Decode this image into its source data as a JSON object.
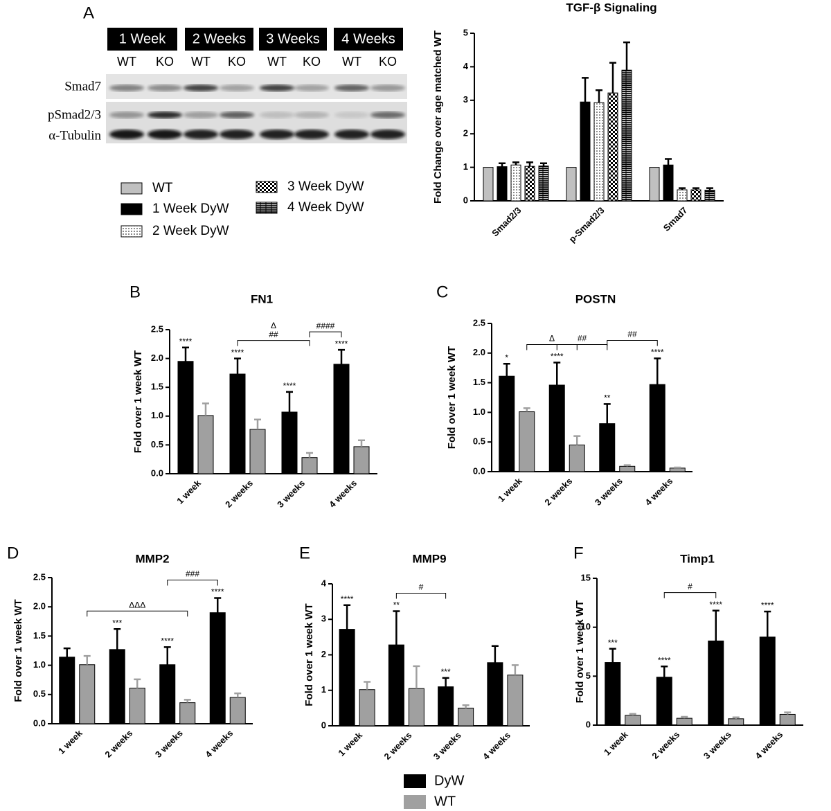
{
  "blot": {
    "timepoints": [
      "1 Week",
      "2 Weeks",
      "3 Weeks",
      "4 Weeks"
    ],
    "lanes": [
      "WT",
      "KO"
    ],
    "rows": [
      "Smad7",
      "pSmad2/3",
      "α-Tubulin"
    ]
  },
  "chart_data": [
    {
      "type": "bar",
      "panel": "A",
      "title": "TGF-β Signaling",
      "y_label": "Fold Change over age matched WT",
      "categories": [
        "Smad2/3",
        "p-Smad2/3",
        "Smad7"
      ],
      "ylim": [
        0,
        5
      ],
      "yticks": [
        0,
        1,
        2,
        3,
        4,
        5
      ],
      "series": [
        {
          "name": "WT",
          "color": "#c0c0c0",
          "pattern": "solid",
          "values": [
            1,
            1,
            1
          ]
        },
        {
          "name": "1 Week DyW",
          "color": "#000000",
          "pattern": "solid",
          "values": [
            1.02,
            2.95,
            1.07
          ],
          "errors": [
            0.1,
            0.72,
            0.18
          ]
        },
        {
          "name": "2 Week DyW",
          "color": "#000000",
          "pattern": "dots",
          "values": [
            1.07,
            2.93,
            0.33
          ],
          "errors": [
            0.08,
            0.37,
            0.05
          ]
        },
        {
          "name": "3 Week DyW",
          "color": "#000000",
          "pattern": "checker",
          "values": [
            1.03,
            3.22,
            0.33
          ],
          "errors": [
            0.12,
            0.9,
            0.05
          ]
        },
        {
          "name": "4 Week DyW",
          "color": "#000000",
          "pattern": "bricks",
          "values": [
            1.04,
            3.9,
            0.32
          ],
          "errors": [
            0.08,
            0.83,
            0.06
          ]
        }
      ]
    },
    {
      "type": "bar",
      "panel": "B",
      "title": "FN1",
      "y_label": "Fold over 1 week WT",
      "categories": [
        "1 week",
        "2 weeks",
        "3 weeks",
        "4 weeks"
      ],
      "ylim": [
        0,
        2.5
      ],
      "yticks": [
        {
          "value": 0,
          "label": "0.0"
        },
        0.5,
        {
          "value": 1,
          "label": "1.0"
        },
        1.5,
        {
          "value": 2,
          "label": "2.0"
        },
        2.5
      ],
      "series": [
        {
          "name": "DyW",
          "color": "#000000",
          "pattern": "solid",
          "values": [
            1.95,
            1.73,
            1.07,
            1.9
          ],
          "errors": [
            0.24,
            0.27,
            0.35,
            0.25
          ],
          "significance": [
            "****",
            "****",
            "****",
            "****"
          ]
        },
        {
          "name": "WT",
          "color": "#a0a0a0",
          "pattern": "solid",
          "values": [
            1.01,
            0.77,
            0.28,
            0.47
          ],
          "errors": [
            0.21,
            0.17,
            0.08,
            0.11
          ]
        }
      ],
      "brackets": [
        {
          "from": [
            1,
            0
          ],
          "to": [
            2,
            1
          ],
          "labels": [
            "Δ",
            "##"
          ]
        },
        {
          "from": [
            2,
            1
          ],
          "to": [
            3,
            0
          ],
          "labels": [
            "####"
          ]
        }
      ]
    },
    {
      "type": "bar",
      "panel": "C",
      "title": "POSTN",
      "y_label": "Fold over 1 week WT",
      "categories": [
        "1 week",
        "2 weeks",
        "3 weeks",
        "4 weeks"
      ],
      "ylim": [
        0,
        2.5
      ],
      "yticks": [
        {
          "value": 0,
          "label": "0.0"
        },
        0.5,
        {
          "value": 1,
          "label": "1.0"
        },
        1.5,
        {
          "value": 2,
          "label": "2.0"
        },
        2.5
      ],
      "series": [
        {
          "name": "DyW",
          "color": "#000000",
          "pattern": "solid",
          "values": [
            1.61,
            1.46,
            0.81,
            1.47
          ],
          "errors": [
            0.21,
            0.38,
            0.33,
            0.44
          ],
          "significance": [
            "*",
            "****",
            "**",
            "****"
          ]
        },
        {
          "name": "WT",
          "color": "#a0a0a0",
          "pattern": "solid",
          "values": [
            1.01,
            0.45,
            0.09,
            0.06
          ],
          "errors": [
            0.06,
            0.15,
            0.02,
            0.01
          ]
        }
      ],
      "brackets": [
        {
          "from": [
            0,
            1
          ],
          "to": [
            1,
            1
          ],
          "labels": [
            "Δ"
          ]
        },
        {
          "from": [
            1,
            0
          ],
          "to": [
            2,
            0
          ],
          "labels": [
            "##"
          ]
        },
        {
          "from": [
            2,
            0
          ],
          "to": [
            3,
            0
          ],
          "labels": [
            "##"
          ]
        }
      ]
    },
    {
      "type": "bar",
      "panel": "D",
      "title": "MMP2",
      "y_label": "Fold over 1 week WT",
      "categories": [
        "1 week",
        "2 weeks",
        "3 weeks",
        "4 weeks"
      ],
      "ylim": [
        0,
        2.5
      ],
      "yticks": [
        {
          "value": 0,
          "label": "0.0"
        },
        0.5,
        {
          "value": 1,
          "label": "1.0"
        },
        1.5,
        {
          "value": 2,
          "label": "2.0"
        },
        2.5
      ],
      "series": [
        {
          "name": "DyW",
          "color": "#000000",
          "pattern": "solid",
          "values": [
            1.14,
            1.27,
            1.01,
            1.9
          ],
          "errors": [
            0.15,
            0.35,
            0.3,
            0.25
          ],
          "significance": [
            null,
            "***",
            "****",
            "****"
          ]
        },
        {
          "name": "WT",
          "color": "#a0a0a0",
          "pattern": "solid",
          "values": [
            1.01,
            0.61,
            0.36,
            0.45
          ],
          "errors": [
            0.15,
            0.15,
            0.05,
            0.07
          ]
        }
      ],
      "brackets": [
        {
          "from": [
            0,
            1
          ],
          "to": [
            2,
            1
          ],
          "labels": [
            "ΔΔΔ"
          ]
        },
        {
          "from": [
            2,
            0
          ],
          "to": [
            3,
            0
          ],
          "labels": [
            "###"
          ]
        }
      ]
    },
    {
      "type": "bar",
      "panel": "E",
      "title": "MMP9",
      "y_label": "Fold over 1 week WT",
      "categories": [
        "1 week",
        "2 weeks",
        "3 weeks",
        "4 weeks"
      ],
      "ylim": [
        0,
        4
      ],
      "yticks": [
        0,
        1,
        2,
        3,
        4
      ],
      "series": [
        {
          "name": "DyW",
          "color": "#000000",
          "pattern": "solid",
          "values": [
            2.72,
            2.28,
            1.1,
            1.78
          ],
          "errors": [
            0.68,
            0.95,
            0.25,
            0.47
          ],
          "significance": [
            "****",
            "**",
            "***",
            null
          ]
        },
        {
          "name": "WT",
          "color": "#a0a0a0",
          "pattern": "solid",
          "values": [
            1.02,
            1.05,
            0.5,
            1.43
          ],
          "errors": [
            0.22,
            0.63,
            0.08,
            0.28
          ]
        }
      ],
      "brackets": [
        {
          "from": [
            1,
            0
          ],
          "to": [
            2,
            0
          ],
          "labels": [
            "#"
          ]
        }
      ]
    },
    {
      "type": "bar",
      "panel": "F",
      "title": "Timp1",
      "y_label": "Fold over 1 week WT",
      "categories": [
        "1 week",
        "2 weeks",
        "3 weeks",
        "4 weeks"
      ],
      "ylim": [
        0,
        15
      ],
      "yticks": [
        0,
        5,
        10,
        15
      ],
      "series": [
        {
          "name": "DyW",
          "color": "#000000",
          "pattern": "solid",
          "values": [
            6.4,
            4.9,
            8.6,
            9.0
          ],
          "errors": [
            1.4,
            1.1,
            3.1,
            2.6
          ],
          "significance": [
            "***",
            "****",
            "****",
            "****"
          ]
        },
        {
          "name": "WT",
          "color": "#a0a0a0",
          "pattern": "solid",
          "values": [
            1.0,
            0.7,
            0.65,
            1.1
          ],
          "errors": [
            0.15,
            0.15,
            0.15,
            0.2
          ]
        }
      ],
      "brackets": [
        {
          "from": [
            1,
            0
          ],
          "to": [
            2,
            0
          ],
          "labels": [
            "#"
          ]
        }
      ]
    }
  ]
}
